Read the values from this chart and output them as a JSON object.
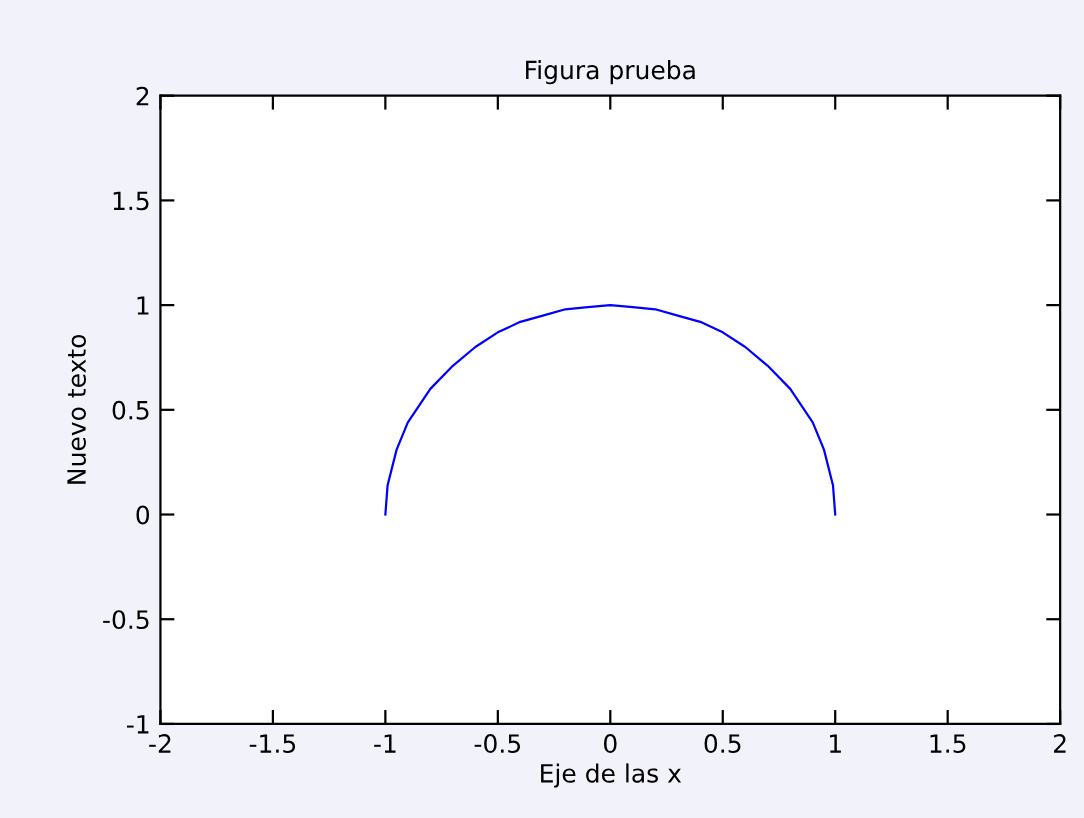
{
  "chart_data": {
    "type": "line",
    "title": "Figura prueba",
    "xlabel": "Eje de las x",
    "ylabel": "Nuevo texto",
    "x": [
      -1,
      -0.99,
      -0.95,
      -0.9,
      -0.8,
      -0.7,
      -0.6,
      -0.5,
      -0.4,
      -0.3,
      -0.2,
      -0.1,
      0,
      0.1,
      0.2,
      0.3,
      0.4,
      0.5,
      0.6,
      0.7,
      0.8,
      0.9,
      0.95,
      0.99,
      1
    ],
    "series": [
      {
        "color": "#0000ff",
        "values": [
          0,
          0.14,
          0.31,
          0.44,
          0.6,
          0.71,
          0.8,
          0.87,
          0.92,
          0.95,
          0.98,
          0.99,
          1,
          0.99,
          0.98,
          0.95,
          0.92,
          0.87,
          0.8,
          0.71,
          0.6,
          0.44,
          0.31,
          0.14,
          0
        ]
      }
    ],
    "xlim": [
      -2,
      2
    ],
    "xticks": [
      -2,
      -1.5,
      -1,
      -0.5,
      0,
      0.5,
      1,
      1.5,
      2
    ],
    "ylim": [
      -1,
      2
    ],
    "yticks": [
      -1,
      -0.5,
      0,
      0.5,
      1,
      1.5,
      2
    ],
    "grid": false,
    "legend": false,
    "marker": "none",
    "line_style": "solid"
  }
}
